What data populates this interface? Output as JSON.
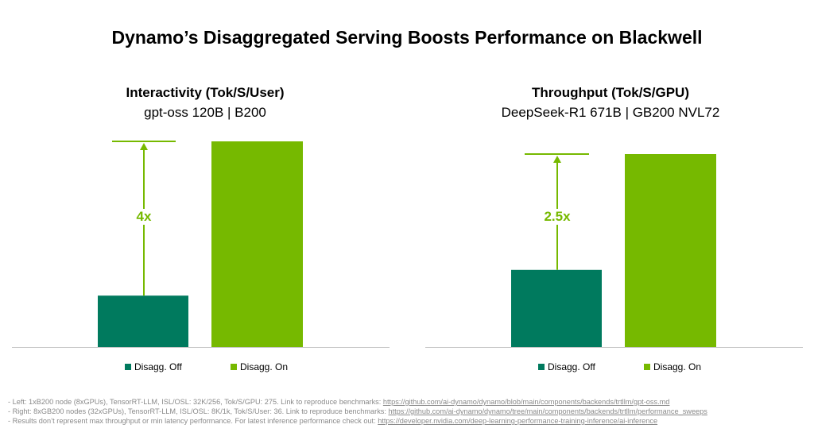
{
  "title": "Dynamo’s Disaggregated Serving Boosts Performance on Blackwell",
  "colors": {
    "off": "#007a5e",
    "on": "#76b900",
    "axis": "#c8c8c8",
    "annotation": "#76b900"
  },
  "chart_data": [
    {
      "type": "bar",
      "title": "Interactivity (Tok/S/User)",
      "subtitle": "gpt-oss 120B | B200",
      "categories": [
        "Disagg. Off",
        "Disagg. On"
      ],
      "values": [
        1,
        4
      ],
      "ylim": [
        0,
        4
      ],
      "annotation": "4x",
      "legend": [
        "Disagg. Off",
        "Disagg. On"
      ],
      "legend_position": "bottom"
    },
    {
      "type": "bar",
      "title": "Throughput (Tok/S/GPU)",
      "subtitle": "DeepSeek-R1 671B | GB200 NVL72",
      "categories": [
        "Disagg. Off",
        "Disagg. On"
      ],
      "values": [
        1,
        2.5
      ],
      "ylim": [
        0,
        2.5
      ],
      "annotation": "2.5x",
      "legend": [
        "Disagg. Off",
        "Disagg. On"
      ],
      "legend_position": "bottom"
    }
  ],
  "footnotes": [
    {
      "text": "- Left: 1xB200 node (8xGPUs), TensorRT-LLM, ISL/OSL: 32K/256, Tok/S/GPU: 275. Link to reproduce benchmarks: ",
      "link": "https://github.com/ai-dynamo/dynamo/blob/main/components/backends/trtllm/gpt-oss.md"
    },
    {
      "text": "- Right: 8xGB200 nodes (32xGPUs), TensorRT-LLM, ISL/OSL: 8K/1k, Tok/S/User: 36. Link to reproduce benchmarks: ",
      "link": "https://github.com/ai-dynamo/dynamo/tree/main/components/backends/trtllm/performance_sweeps"
    },
    {
      "text": "- Results don’t represent max throughput or min latency performance. For latest inference performance check out: ",
      "link": "https://developer.nvidia.com/deep-learning-performance-training-inference/ai-inference"
    }
  ]
}
